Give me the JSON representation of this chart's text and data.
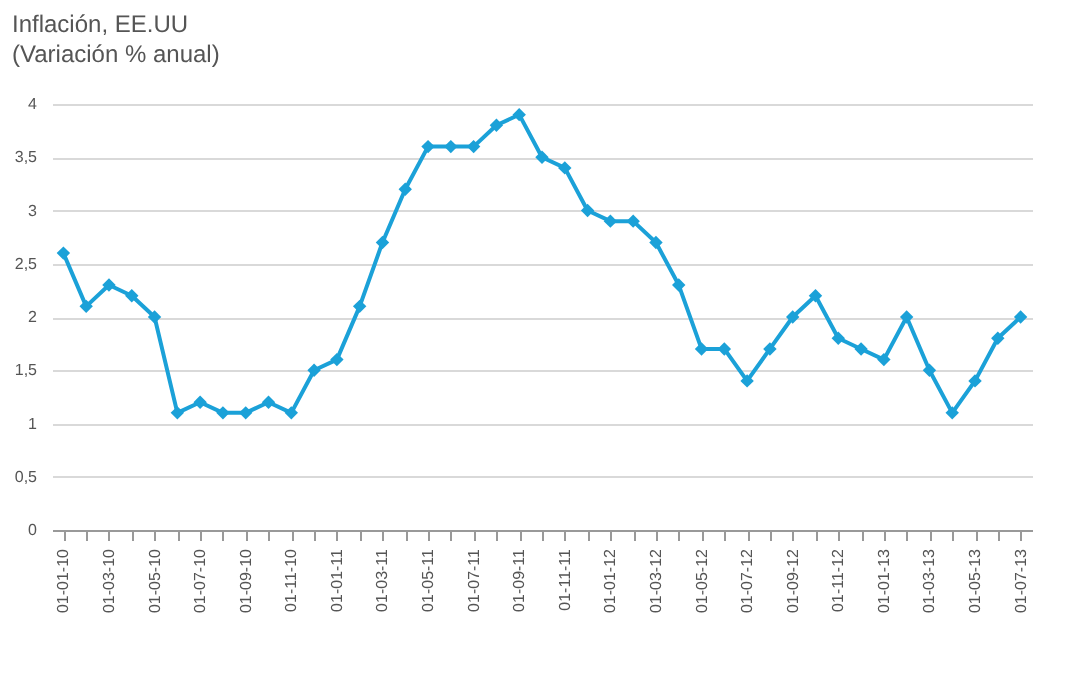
{
  "chart_data": {
    "type": "line",
    "title": "Inflación, EE.UU",
    "subtitle": "(Variación % anual)",
    "categories": [
      "01-01-10",
      null,
      "01-03-10",
      null,
      "01-05-10",
      null,
      "01-07-10",
      null,
      "01-09-10",
      null,
      "01-11-10",
      null,
      "01-01-11",
      null,
      "01-03-11",
      null,
      "01-05-11",
      null,
      "01-07-11",
      null,
      "01-09-11",
      null,
      "01-11-11",
      null,
      "01-01-12",
      null,
      "01-03-12",
      null,
      "01-05-12",
      null,
      "01-07-12",
      null,
      "01-09-12",
      null,
      "01-11-12",
      null,
      "01-01-13",
      null,
      "01-03-13",
      null,
      "01-05-13",
      null,
      "01-07-13"
    ],
    "series": [
      {
        "color": "#1ba1d8",
        "values": [
          2.6,
          2.1,
          2.3,
          2.2,
          2.0,
          1.1,
          1.2,
          1.1,
          1.1,
          1.2,
          1.1,
          1.5,
          1.6,
          2.1,
          2.7,
          3.2,
          3.6,
          3.6,
          3.6,
          3.8,
          3.9,
          3.5,
          3.4,
          3.0,
          2.9,
          2.9,
          2.7,
          2.3,
          1.7,
          1.7,
          1.4,
          1.7,
          2.0,
          2.2,
          1.8,
          1.7,
          1.6,
          2.0,
          1.5,
          1.1,
          1.4,
          1.8,
          2.0
        ]
      }
    ],
    "ylim": [
      0,
      4
    ],
    "yticks": [
      0,
      {
        "value": 0.5,
        "label": "0,5"
      },
      1,
      {
        "value": 1.5,
        "label": "1,5"
      },
      2,
      {
        "value": 2.5,
        "label": "2,5"
      },
      3,
      {
        "value": 3.5,
        "label": "3,5"
      },
      4
    ],
    "grid": "y",
    "marker": "diamond",
    "line_style": "solid"
  }
}
